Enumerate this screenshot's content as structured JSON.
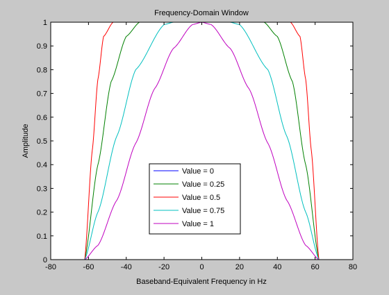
{
  "chart_data": {
    "type": "line",
    "title": "Frequency-Domain Window",
    "xlabel": "Baseband-Equivalent Frequency in Hz",
    "ylabel": "Amplitude",
    "xlim": [
      -80,
      80
    ],
    "ylim": [
      0,
      1
    ],
    "xticks": [
      "-80",
      "-60",
      "-40",
      "-20",
      "0",
      "20",
      "40",
      "60",
      "80"
    ],
    "yticks": [
      "0",
      "0.1",
      "0.2",
      "0.3",
      "0.4",
      "0.5",
      "0.6",
      "0.7",
      "0.8",
      "0.9",
      "1"
    ],
    "grid": false,
    "legend_position": "bottom-center",
    "series": [
      {
        "name": "Value = 0",
        "color": "#0000ff",
        "x": [
          -62,
          62
        ],
        "y": [
          1,
          1
        ]
      },
      {
        "name": "Value = 0.25",
        "color": "#008000",
        "x": [
          -62,
          -55,
          -48,
          -40,
          -33,
          0,
          33,
          40,
          48,
          55,
          62
        ],
        "y": [
          0,
          0.4,
          0.75,
          0.94,
          1,
          1,
          1,
          0.94,
          0.75,
          0.4,
          0
        ]
      },
      {
        "name": "Value = 0.5",
        "color": "#ff0000",
        "x": [
          -62,
          -58,
          -55,
          -52,
          -47,
          0,
          47,
          52,
          55,
          58,
          62
        ],
        "y": [
          0,
          0.46,
          0.76,
          0.94,
          1,
          1,
          1,
          0.94,
          0.76,
          0.46,
          0
        ]
      },
      {
        "name": "Value = 0.75",
        "color": "#00bfbf",
        "x": [
          -62,
          -55,
          -45,
          -35,
          -20,
          -15,
          0,
          15,
          20,
          35,
          45,
          55,
          62
        ],
        "y": [
          0,
          0.2,
          0.52,
          0.8,
          0.99,
          1,
          1,
          1,
          0.99,
          0.8,
          0.52,
          0.2,
          0
        ]
      },
      {
        "name": "Value = 1",
        "color": "#bf00bf",
        "x": [
          -62,
          -55,
          -45,
          -35,
          -25,
          -15,
          -5,
          0,
          5,
          15,
          25,
          35,
          45,
          55,
          62
        ],
        "y": [
          0,
          0.06,
          0.25,
          0.49,
          0.72,
          0.89,
          0.99,
          1,
          0.99,
          0.89,
          0.72,
          0.49,
          0.25,
          0.06,
          0
        ]
      }
    ]
  }
}
